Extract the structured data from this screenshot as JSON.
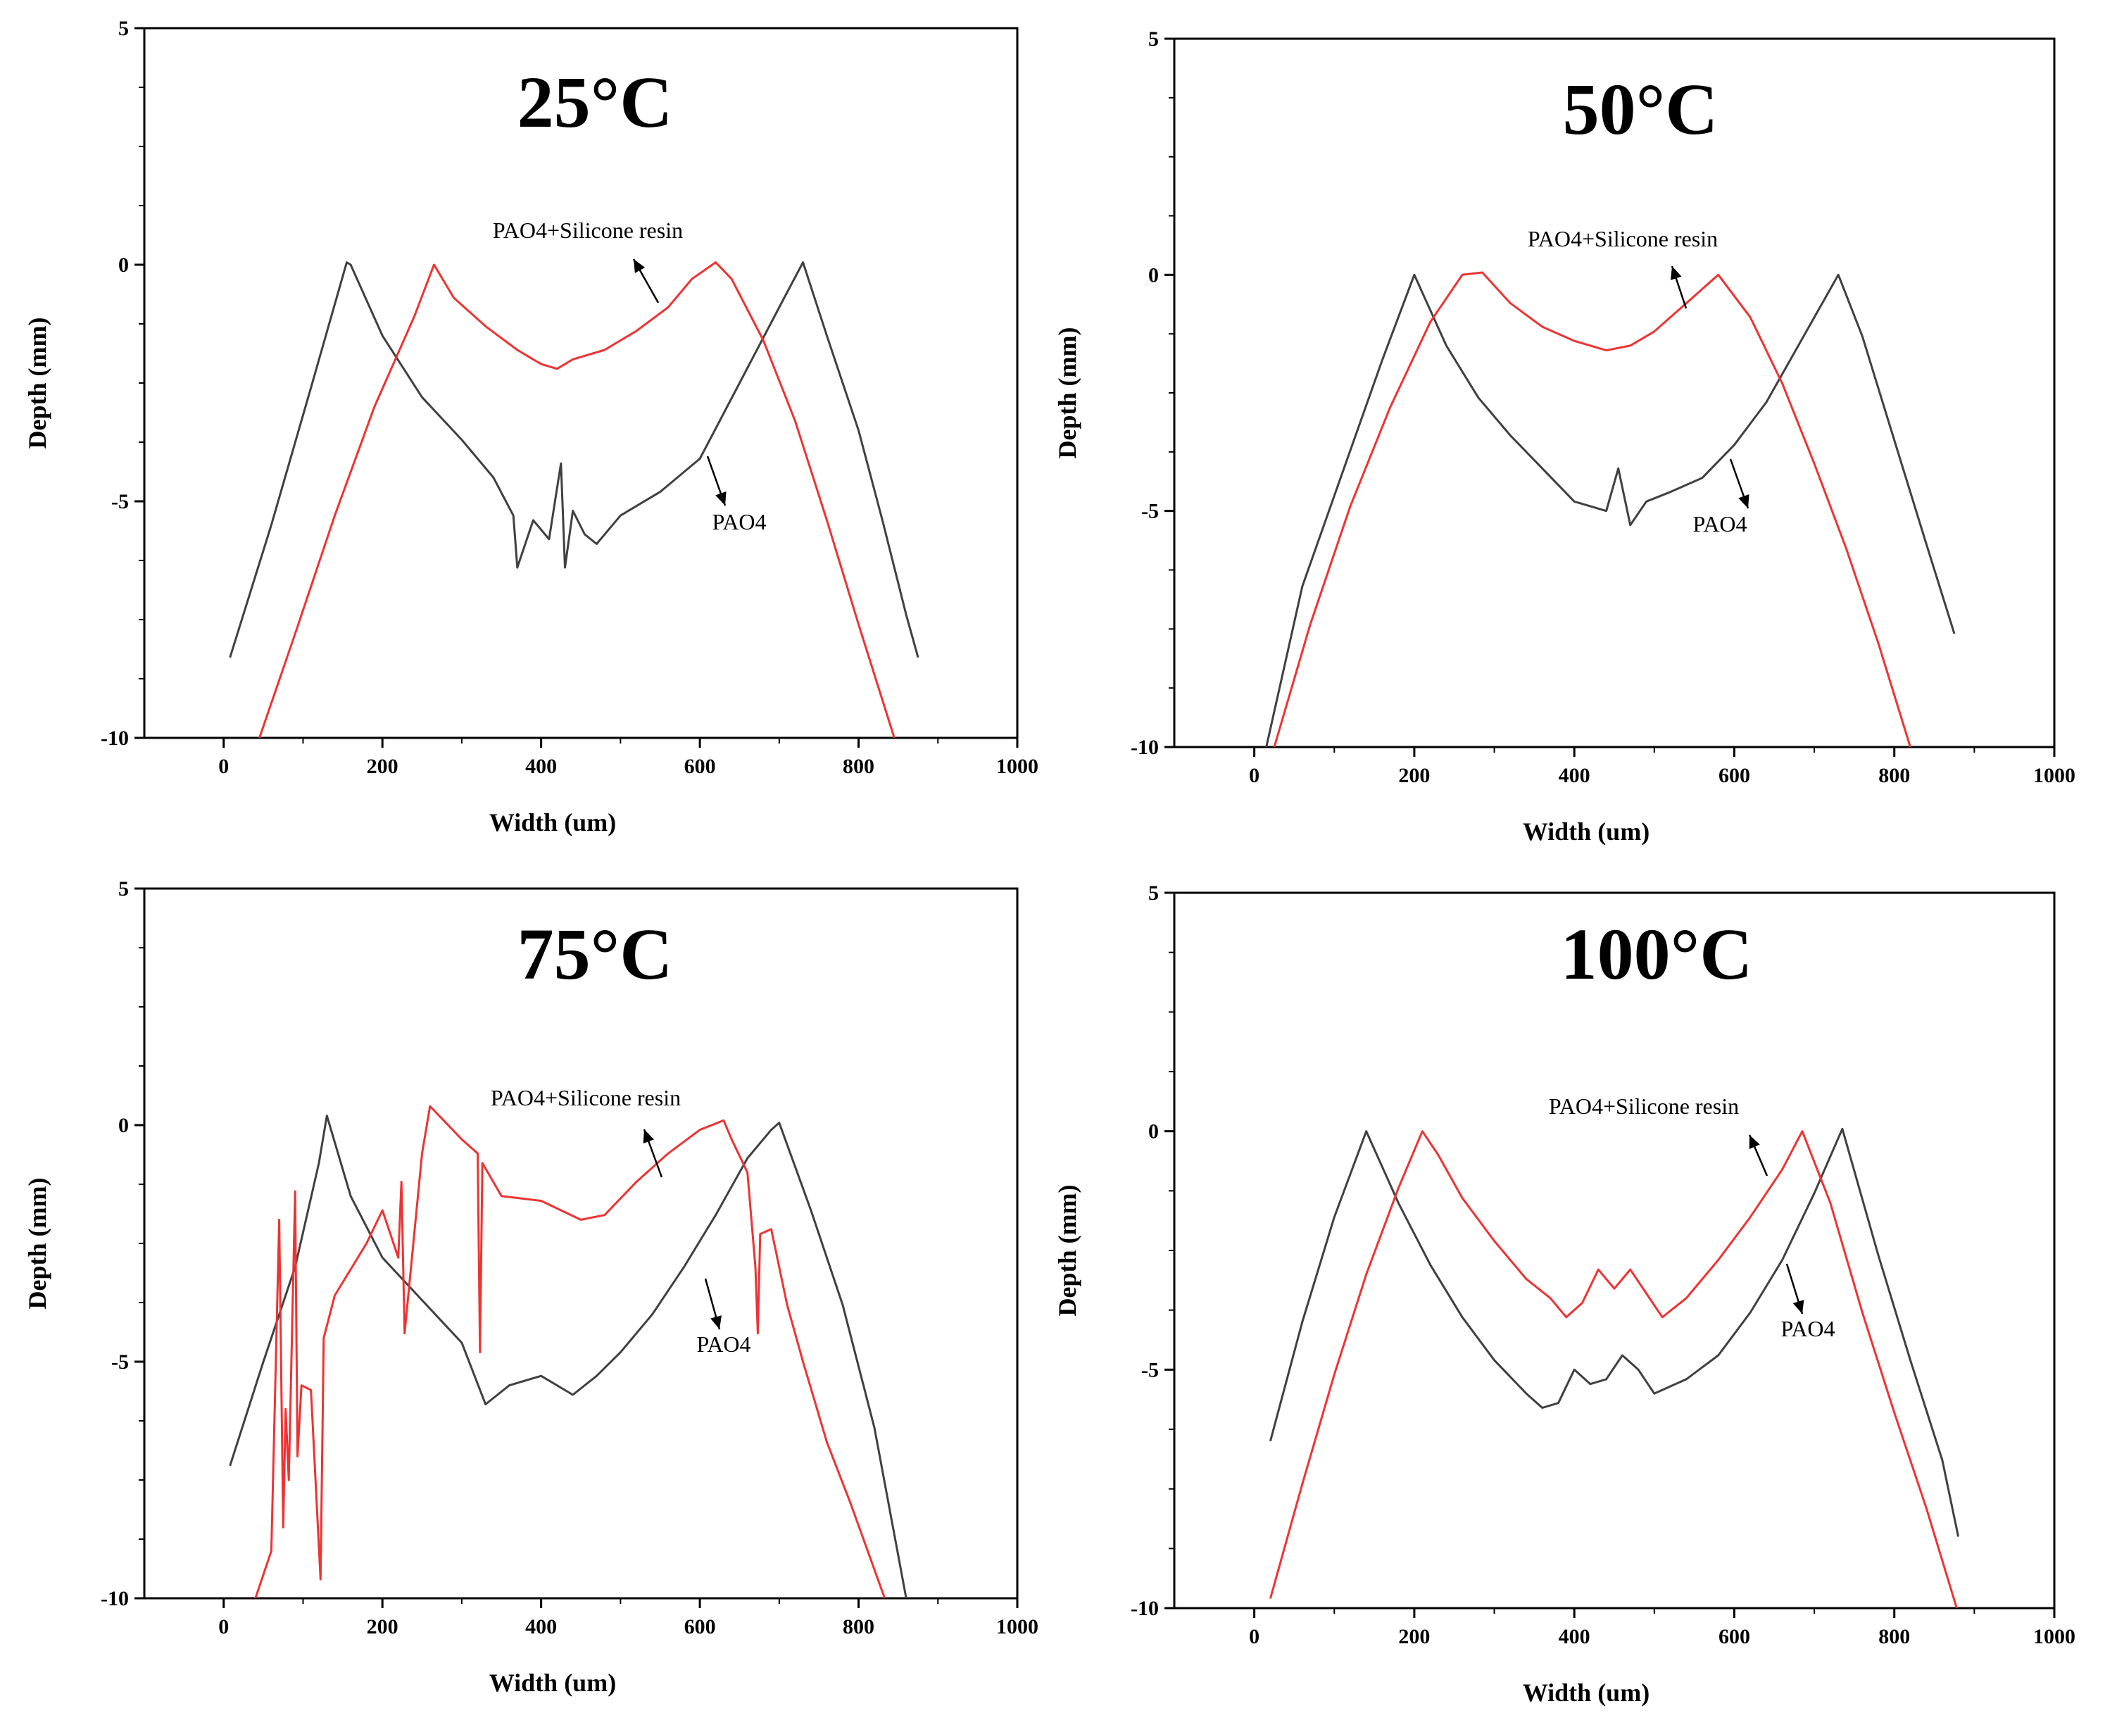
{
  "figure": {
    "description_free": true
  },
  "chart_data": [
    {
      "type": "line",
      "title": "25°C",
      "xlabel": "Width (um)",
      "ylabel": "Depth (mm)",
      "xlim": [
        -100,
        1000
      ],
      "ylim": [
        -10,
        5
      ],
      "xticks": [
        0,
        200,
        400,
        600,
        800,
        1000
      ],
      "xtick_labels": [
        "0",
        "200",
        "400",
        "600",
        "800",
        "1000"
      ],
      "yticks": [
        -10,
        -5,
        0,
        5
      ],
      "ytick_labels": [
        "-10",
        "-5",
        "0",
        "5"
      ],
      "annotations": {
        "upper": "PAO4+Silicone resin",
        "lower": "PAO4"
      },
      "series": [
        {
          "name": "PAO4",
          "color": "#404040",
          "x": [
            8,
            60,
            110,
            155,
            160,
            200,
            250,
            300,
            340,
            365,
            370,
            390,
            410,
            425,
            430,
            440,
            455,
            470,
            500,
            550,
            600,
            650,
            700,
            730,
            760,
            800,
            830,
            860,
            875
          ],
          "y": [
            -8.3,
            -5.5,
            -2.6,
            0.05,
            0,
            -1.5,
            -2.8,
            -3.7,
            -4.5,
            -5.3,
            -6.4,
            -5.4,
            -5.8,
            -4.2,
            -6.4,
            -5.2,
            -5.7,
            -5.9,
            -5.3,
            -4.8,
            -4.1,
            -2.5,
            -0.9,
            0.05,
            -1.5,
            -3.5,
            -5.4,
            -7.4,
            -8.3
          ]
        },
        {
          "name": "PAO4+Silicone resin",
          "color": "#ee3333",
          "x": [
            45,
            90,
            140,
            190,
            240,
            265,
            290,
            330,
            370,
            400,
            420,
            440,
            480,
            520,
            560,
            590,
            620,
            640,
            680,
            720,
            760,
            800,
            845
          ],
          "y": [
            -10,
            -7.8,
            -5.3,
            -3.0,
            -1.1,
            0,
            -0.7,
            -1.3,
            -1.8,
            -2.1,
            -2.2,
            -2.0,
            -1.8,
            -1.4,
            -0.9,
            -0.3,
            0.05,
            -0.3,
            -1.6,
            -3.3,
            -5.4,
            -7.6,
            -10
          ]
        }
      ]
    },
    {
      "type": "line",
      "title": "50°C",
      "xlabel": "Width (um)",
      "ylabel": "Depth (mm)",
      "xlim": [
        -100,
        1000
      ],
      "ylim": [
        -10,
        5
      ],
      "xticks": [
        0,
        200,
        400,
        600,
        800,
        1000
      ],
      "xtick_labels": [
        "0",
        "200",
        "400",
        "600",
        "800",
        "1000"
      ],
      "yticks": [
        -10,
        -5,
        0,
        5
      ],
      "ytick_labels": [
        "-10",
        "-5",
        "0",
        "5"
      ],
      "annotations": {
        "upper": "PAO4+Silicone resin",
        "lower": "PAO4"
      },
      "series": [
        {
          "name": "PAO4",
          "color": "#404040",
          "x": [
            15,
            60,
            110,
            160,
            200,
            240,
            280,
            320,
            360,
            400,
            440,
            455,
            470,
            490,
            520,
            560,
            600,
            640,
            680,
            720,
            730,
            760,
            800,
            840,
            875
          ],
          "y": [
            -10,
            -6.6,
            -4.2,
            -1.8,
            0,
            -1.5,
            -2.6,
            -3.4,
            -4.1,
            -4.8,
            -5.0,
            -4.1,
            -5.3,
            -4.8,
            -4.6,
            -4.3,
            -3.6,
            -2.7,
            -1.5,
            -0.3,
            0,
            -1.3,
            -3.5,
            -5.7,
            -7.6
          ]
        },
        {
          "name": "PAO4+Silicone resin",
          "color": "#ee3333",
          "x": [
            25,
            70,
            120,
            170,
            220,
            260,
            285,
            320,
            360,
            400,
            440,
            470,
            500,
            540,
            580,
            620,
            660,
            700,
            740,
            780,
            820
          ],
          "y": [
            -10,
            -7.4,
            -4.9,
            -2.8,
            -1.0,
            0,
            0.05,
            -0.6,
            -1.1,
            -1.4,
            -1.6,
            -1.5,
            -1.2,
            -0.6,
            0,
            -0.9,
            -2.3,
            -4.0,
            -5.8,
            -7.8,
            -10
          ]
        }
      ]
    },
    {
      "type": "line",
      "title": "75°C",
      "xlabel": "Width (um)",
      "ylabel": "Depth (mm)",
      "xlim": [
        -100,
        1000
      ],
      "ylim": [
        -10,
        5
      ],
      "xticks": [
        0,
        200,
        400,
        600,
        800,
        1000
      ],
      "xtick_labels": [
        "0",
        "200",
        "400",
        "600",
        "800",
        "1000"
      ],
      "yticks": [
        -10,
        -5,
        0,
        5
      ],
      "ytick_labels": [
        "-10",
        "-5",
        "0",
        "5"
      ],
      "annotations": {
        "upper": "PAO4+Silicone resin",
        "lower": "PAO4"
      },
      "series": [
        {
          "name": "PAO4",
          "color": "#404040",
          "x": [
            8,
            50,
            90,
            120,
            130,
            160,
            200,
            250,
            300,
            330,
            360,
            400,
            440,
            470,
            500,
            540,
            580,
            620,
            660,
            690,
            700,
            740,
            780,
            820,
            860
          ],
          "y": [
            -7.2,
            -5.0,
            -3.0,
            -0.8,
            0.2,
            -1.5,
            -2.8,
            -3.7,
            -4.6,
            -5.9,
            -5.5,
            -5.3,
            -5.7,
            -5.3,
            -4.8,
            -4.0,
            -3.0,
            -1.9,
            -0.7,
            -0.1,
            0.05,
            -1.8,
            -3.8,
            -6.4,
            -10
          ]
        },
        {
          "name": "PAO4+Silicone resin",
          "color": "#ee3333",
          "x": [
            40,
            60,
            70,
            75,
            78,
            82,
            90,
            93,
            98,
            110,
            122,
            126,
            140,
            180,
            200,
            220,
            224,
            228,
            250,
            260,
            300,
            320,
            323,
            326,
            350,
            400,
            450,
            480,
            520,
            560,
            600,
            630,
            640,
            660,
            670,
            673,
            676,
            690,
            710,
            730,
            760,
            790,
            833
          ],
          "y": [
            -10,
            -9,
            -2.0,
            -8.5,
            -6.0,
            -7.5,
            -1.4,
            -7.0,
            -5.5,
            -5.6,
            -9.6,
            -4.5,
            -3.6,
            -2.5,
            -1.8,
            -2.8,
            -1.2,
            -4.4,
            -0.6,
            0.4,
            -0.3,
            -0.6,
            -4.8,
            -0.8,
            -1.5,
            -1.6,
            -2.0,
            -1.9,
            -1.2,
            -0.6,
            -0.1,
            0.1,
            -0.3,
            -1.0,
            -3.0,
            -4.4,
            -2.3,
            -2.2,
            -3.8,
            -5.0,
            -6.7,
            -8.0,
            -10
          ]
        }
      ]
    },
    {
      "type": "line",
      "title": "100°C",
      "xlabel": "Width (um)",
      "ylabel": "Depth (mm)",
      "xlim": [
        -100,
        1000
      ],
      "ylim": [
        -10,
        5
      ],
      "xticks": [
        0,
        200,
        400,
        600,
        800,
        1000
      ],
      "xtick_labels": [
        "0",
        "200",
        "400",
        "600",
        "800",
        "1000"
      ],
      "yticks": [
        -10,
        -5,
        0,
        5
      ],
      "ytick_labels": [
        "-10",
        "-5",
        "0",
        "5"
      ],
      "annotations": {
        "upper": "PAO4+Silicone resin",
        "lower": "PAO4"
      },
      "series": [
        {
          "name": "PAO4",
          "color": "#404040",
          "x": [
            20,
            60,
            100,
            140,
            180,
            220,
            260,
            300,
            340,
            360,
            380,
            400,
            420,
            440,
            460,
            480,
            500,
            540,
            580,
            620,
            660,
            700,
            735,
            780,
            820,
            860,
            880
          ],
          "y": [
            -6.5,
            -4.0,
            -1.8,
            0,
            -1.5,
            -2.8,
            -3.9,
            -4.8,
            -5.5,
            -5.8,
            -5.7,
            -5.0,
            -5.3,
            -5.2,
            -4.7,
            -5.0,
            -5.5,
            -5.2,
            -4.7,
            -3.8,
            -2.7,
            -1.3,
            0.05,
            -2.6,
            -4.8,
            -6.9,
            -8.5
          ]
        },
        {
          "name": "PAO4+Silicone resin",
          "color": "#ee3333",
          "x": [
            20,
            60,
            100,
            140,
            180,
            210,
            230,
            260,
            300,
            340,
            370,
            390,
            410,
            430,
            450,
            470,
            490,
            510,
            540,
            580,
            620,
            660,
            685,
            720,
            760,
            800,
            840,
            878
          ],
          "y": [
            -9.8,
            -7.4,
            -5.1,
            -3.0,
            -1.2,
            0,
            -0.5,
            -1.4,
            -2.3,
            -3.1,
            -3.5,
            -3.9,
            -3.6,
            -2.9,
            -3.3,
            -2.9,
            -3.4,
            -3.9,
            -3.5,
            -2.7,
            -1.8,
            -0.8,
            0,
            -1.5,
            -3.8,
            -5.9,
            -7.9,
            -10
          ]
        }
      ]
    }
  ]
}
